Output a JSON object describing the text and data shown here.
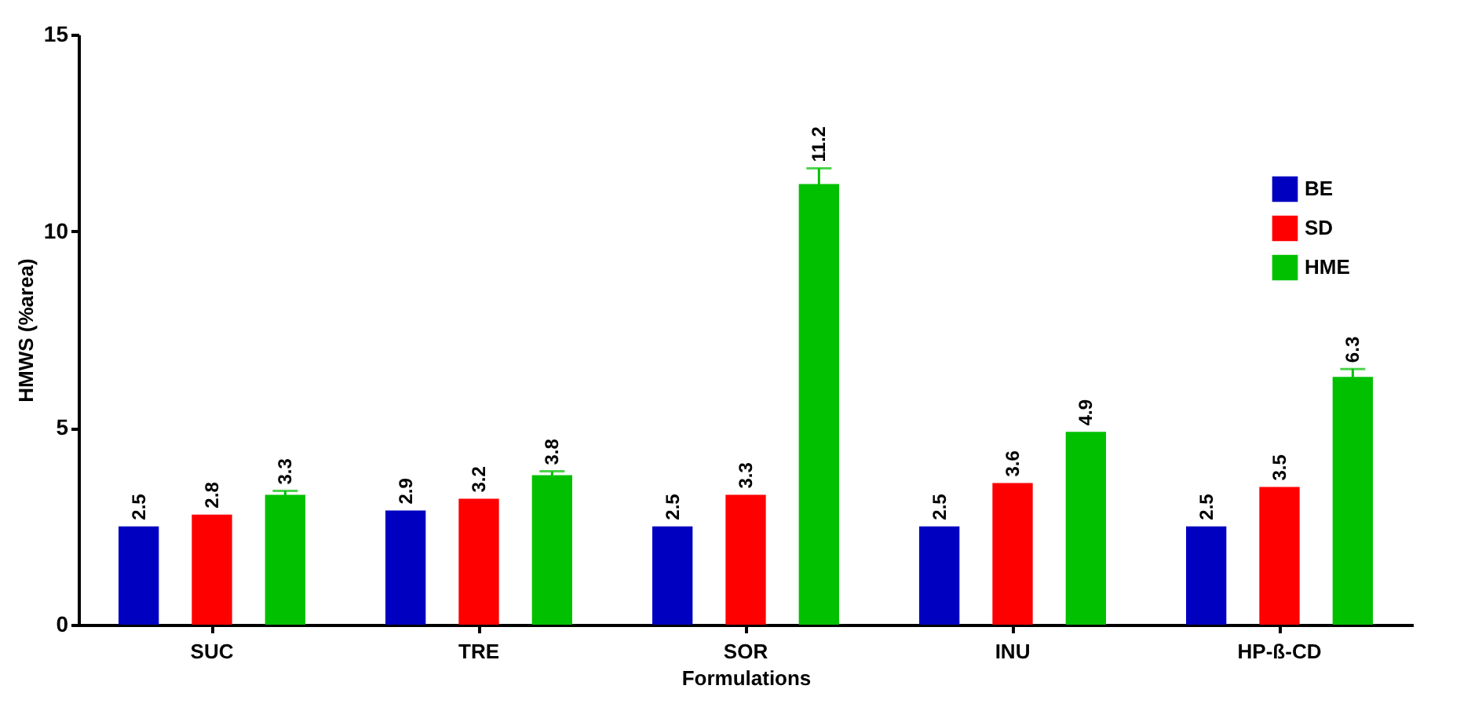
{
  "chart_data": {
    "type": "bar",
    "xlabel": "Formulations",
    "ylabel": "HMWS (%area)",
    "categories": [
      "SUC",
      "TRE",
      "SOR",
      "INU",
      "HP-ß-CD"
    ],
    "series": [
      {
        "name": "BE",
        "color": "#0000c0",
        "values": [
          2.5,
          2.9,
          2.5,
          2.5,
          2.5
        ]
      },
      {
        "name": "SD",
        "color": "#ff0000",
        "values": [
          2.8,
          3.2,
          3.3,
          3.6,
          3.5
        ]
      },
      {
        "name": "HME",
        "color": "#00c000",
        "values": [
          3.3,
          3.8,
          11.2,
          4.9,
          6.3
        ],
        "errors": [
          0.1,
          0.1,
          0.4,
          null,
          0.2
        ]
      }
    ],
    "ylim": [
      0,
      15
    ],
    "yticks": [
      0,
      5,
      10,
      15
    ],
    "data_labels": true,
    "legend": "top right",
    "grid": false
  }
}
